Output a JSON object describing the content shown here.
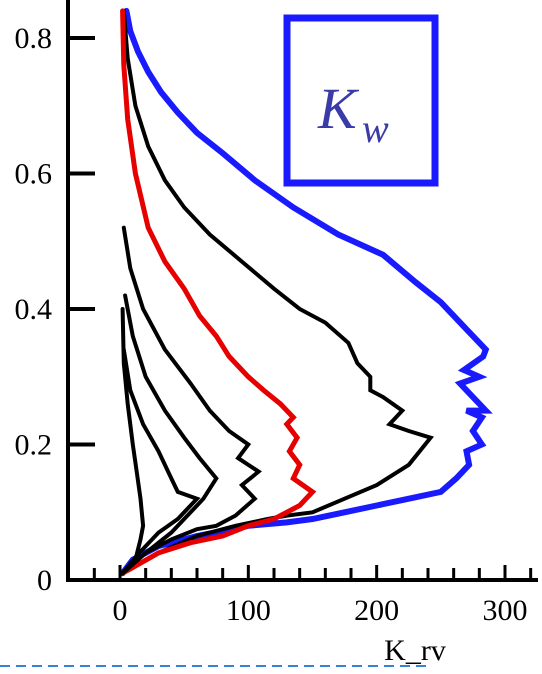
{
  "chart_data": {
    "type": "line",
    "title": "",
    "xlabel": "K_rv",
    "ylabel": "",
    "xlim": [
      -40,
      330
    ],
    "ylim": [
      0,
      0.84
    ],
    "xticks": [
      "0",
      "100",
      "200",
      "300"
    ],
    "yticks": [
      "0",
      "0.2",
      "0.4",
      "0.6",
      "0.8"
    ],
    "legend_box": {
      "main": "K",
      "sub": "w",
      "color": "#1a1aff"
    },
    "series": [
      {
        "color": "#1a1aff",
        "points": [
          [
            2,
            0.01
          ],
          [
            10,
            0.03
          ],
          [
            30,
            0.05
          ],
          [
            60,
            0.065
          ],
          [
            100,
            0.08
          ],
          [
            130,
            0.085
          ],
          [
            150,
            0.09
          ],
          [
            175,
            0.1
          ],
          [
            200,
            0.11
          ],
          [
            225,
            0.12
          ],
          [
            250,
            0.13
          ],
          [
            262,
            0.15
          ],
          [
            272,
            0.17
          ],
          [
            270,
            0.19
          ],
          [
            282,
            0.2
          ],
          [
            275,
            0.22
          ],
          [
            282,
            0.24
          ],
          [
            270,
            0.25
          ],
          [
            285,
            0.25
          ],
          [
            275,
            0.27
          ],
          [
            265,
            0.29
          ],
          [
            280,
            0.3
          ],
          [
            268,
            0.31
          ],
          [
            283,
            0.33
          ],
          [
            285,
            0.34
          ],
          [
            270,
            0.37
          ],
          [
            250,
            0.41
          ],
          [
            230,
            0.44
          ],
          [
            205,
            0.48
          ],
          [
            170,
            0.51
          ],
          [
            135,
            0.55
          ],
          [
            105,
            0.59
          ],
          [
            80,
            0.63
          ],
          [
            60,
            0.66
          ],
          [
            45,
            0.69
          ],
          [
            32,
            0.72
          ],
          [
            22,
            0.75
          ],
          [
            14,
            0.78
          ],
          [
            8,
            0.81
          ],
          [
            5,
            0.84
          ]
        ]
      },
      {
        "color": "#000000",
        "points": [
          [
            2,
            0.01
          ],
          [
            30,
            0.04
          ],
          [
            60,
            0.065
          ],
          [
            90,
            0.08
          ],
          [
            115,
            0.09
          ],
          [
            130,
            0.095
          ],
          [
            150,
            0.1
          ],
          [
            175,
            0.12
          ],
          [
            200,
            0.14
          ],
          [
            225,
            0.17
          ],
          [
            242,
            0.21
          ],
          [
            225,
            0.22
          ],
          [
            210,
            0.23
          ],
          [
            220,
            0.25
          ],
          [
            205,
            0.27
          ],
          [
            195,
            0.28
          ],
          [
            195,
            0.3
          ],
          [
            185,
            0.32
          ],
          [
            178,
            0.35
          ],
          [
            160,
            0.38
          ],
          [
            140,
            0.4
          ],
          [
            120,
            0.43
          ],
          [
            95,
            0.47
          ],
          [
            70,
            0.51
          ],
          [
            50,
            0.55
          ],
          [
            35,
            0.59
          ],
          [
            22,
            0.64
          ],
          [
            12,
            0.7
          ],
          [
            6,
            0.77
          ],
          [
            3,
            0.84
          ]
        ]
      },
      {
        "color": "#e60000",
        "points": [
          [
            2,
            0.01
          ],
          [
            30,
            0.04
          ],
          [
            55,
            0.055
          ],
          [
            80,
            0.065
          ],
          [
            100,
            0.08
          ],
          [
            120,
            0.09
          ],
          [
            140,
            0.11
          ],
          [
            150,
            0.13
          ],
          [
            135,
            0.15
          ],
          [
            140,
            0.17
          ],
          [
            132,
            0.19
          ],
          [
            138,
            0.21
          ],
          [
            130,
            0.23
          ],
          [
            135,
            0.24
          ],
          [
            125,
            0.26
          ],
          [
            112,
            0.28
          ],
          [
            100,
            0.3
          ],
          [
            85,
            0.33
          ],
          [
            75,
            0.36
          ],
          [
            62,
            0.39
          ],
          [
            50,
            0.43
          ],
          [
            35,
            0.47
          ],
          [
            22,
            0.52
          ],
          [
            12,
            0.6
          ],
          [
            6,
            0.68
          ],
          [
            3,
            0.76
          ],
          [
            2,
            0.84
          ]
        ]
      },
      {
        "color": "#000000",
        "points": [
          [
            2,
            0.01
          ],
          [
            20,
            0.04
          ],
          [
            40,
            0.06
          ],
          [
            60,
            0.075
          ],
          [
            75,
            0.08
          ],
          [
            90,
            0.095
          ],
          [
            105,
            0.12
          ],
          [
            95,
            0.14
          ],
          [
            108,
            0.16
          ],
          [
            92,
            0.18
          ],
          [
            100,
            0.2
          ],
          [
            85,
            0.22
          ],
          [
            70,
            0.25
          ],
          [
            55,
            0.29
          ],
          [
            35,
            0.34
          ],
          [
            18,
            0.4
          ],
          [
            8,
            0.46
          ],
          [
            3,
            0.52
          ]
        ]
      },
      {
        "color": "#000000",
        "points": [
          [
            2,
            0.01
          ],
          [
            20,
            0.04
          ],
          [
            40,
            0.07
          ],
          [
            55,
            0.1
          ],
          [
            65,
            0.12
          ],
          [
            75,
            0.15
          ],
          [
            62,
            0.18
          ],
          [
            50,
            0.21
          ],
          [
            35,
            0.25
          ],
          [
            20,
            0.3
          ],
          [
            10,
            0.36
          ],
          [
            4,
            0.42
          ]
        ]
      },
      {
        "color": "#000000",
        "points": [
          [
            2,
            0.01
          ],
          [
            15,
            0.04
          ],
          [
            30,
            0.07
          ],
          [
            45,
            0.09
          ],
          [
            60,
            0.12
          ],
          [
            45,
            0.13
          ],
          [
            40,
            0.15
          ],
          [
            30,
            0.19
          ],
          [
            18,
            0.23
          ],
          [
            8,
            0.28
          ],
          [
            3,
            0.34
          ]
        ]
      },
      {
        "color": "#000000",
        "points": [
          [
            2,
            0.01
          ],
          [
            12,
            0.03
          ],
          [
            16,
            0.06
          ],
          [
            18,
            0.08
          ],
          [
            16,
            0.12
          ],
          [
            13,
            0.16
          ],
          [
            10,
            0.2
          ],
          [
            6,
            0.26
          ],
          [
            3,
            0.32
          ],
          [
            2,
            0.4
          ]
        ]
      }
    ]
  }
}
